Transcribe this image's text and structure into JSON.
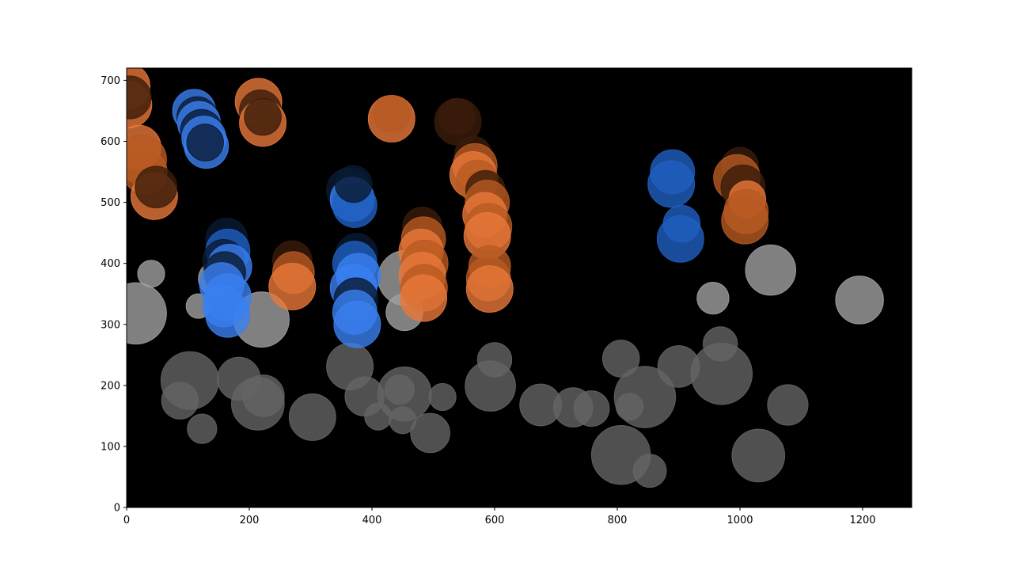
{
  "chart_data": {
    "type": "scatter",
    "title": "",
    "xlabel": "",
    "ylabel": "",
    "xlim": [
      0,
      1280
    ],
    "ylim": [
      0,
      720
    ],
    "x_ticks": [
      0,
      200,
      400,
      600,
      800,
      1000,
      1200
    ],
    "y_ticks": [
      0,
      100,
      200,
      300,
      400,
      500,
      600,
      700
    ],
    "grid": false,
    "background": "#000000",
    "colors": {
      "gray_light": "#a0a0a0",
      "gray_dark": "#646464",
      "blue_light": "#3a80f0",
      "blue_mid": "#1f5fc0",
      "blue_dark": "#0a1a33",
      "orange_light": "#e8783a",
      "orange_mid": "#b85a22",
      "orange_dark": "#3a1c0a"
    },
    "series": [
      {
        "color_key": "gray",
        "points": [
          {
            "x": 15,
            "y": 318,
            "r": 50,
            "c": "gray_light"
          },
          {
            "x": 40,
            "y": 383,
            "r": 22,
            "c": "gray_light"
          },
          {
            "x": 117,
            "y": 330,
            "r": 20,
            "c": "gray_light"
          },
          {
            "x": 145,
            "y": 375,
            "r": 28,
            "c": "gray_light"
          },
          {
            "x": 220,
            "y": 308,
            "r": 45,
            "c": "gray_light"
          },
          {
            "x": 103,
            "y": 208,
            "r": 47,
            "c": "gray_dark"
          },
          {
            "x": 87,
            "y": 175,
            "r": 30,
            "c": "gray_dark"
          },
          {
            "x": 123,
            "y": 129,
            "r": 24,
            "c": "gray_dark"
          },
          {
            "x": 183,
            "y": 211,
            "r": 35,
            "c": "gray_dark"
          },
          {
            "x": 214,
            "y": 170,
            "r": 43,
            "c": "gray_dark"
          },
          {
            "x": 223,
            "y": 183,
            "r": 34,
            "c": "gray_dark"
          },
          {
            "x": 303,
            "y": 148,
            "r": 38,
            "c": "gray_dark"
          },
          {
            "x": 364,
            "y": 231,
            "r": 38,
            "c": "gray_dark"
          },
          {
            "x": 388,
            "y": 182,
            "r": 32,
            "c": "gray_dark"
          },
          {
            "x": 410,
            "y": 149,
            "r": 22,
            "c": "gray_dark"
          },
          {
            "x": 453,
            "y": 186,
            "r": 44,
            "c": "gray_dark"
          },
          {
            "x": 445,
            "y": 193,
            "r": 24,
            "c": "gray_dark"
          },
          {
            "x": 450,
            "y": 143,
            "r": 22,
            "c": "gray_dark"
          },
          {
            "x": 453,
            "y": 320,
            "r": 30,
            "c": "gray_light"
          },
          {
            "x": 455,
            "y": 376,
            "r": 45,
            "c": "gray_light"
          },
          {
            "x": 495,
            "y": 122,
            "r": 32,
            "c": "gray_dark"
          },
          {
            "x": 515,
            "y": 181,
            "r": 22,
            "c": "gray_dark"
          },
          {
            "x": 593,
            "y": 199,
            "r": 41,
            "c": "gray_dark"
          },
          {
            "x": 600,
            "y": 242,
            "r": 28,
            "c": "gray_dark"
          },
          {
            "x": 675,
            "y": 168,
            "r": 34,
            "c": "gray_dark"
          },
          {
            "x": 728,
            "y": 164,
            "r": 32,
            "c": "gray_dark"
          },
          {
            "x": 758,
            "y": 162,
            "r": 29,
            "c": "gray_dark"
          },
          {
            "x": 806,
            "y": 244,
            "r": 30,
            "c": "gray_dark"
          },
          {
            "x": 806,
            "y": 86,
            "r": 48,
            "c": "gray_dark"
          },
          {
            "x": 820,
            "y": 165,
            "r": 22,
            "c": "gray_dark"
          },
          {
            "x": 845,
            "y": 181,
            "r": 50,
            "c": "gray_dark"
          },
          {
            "x": 853,
            "y": 60,
            "r": 27,
            "c": "gray_dark"
          },
          {
            "x": 900,
            "y": 231,
            "r": 34,
            "c": "gray_dark"
          },
          {
            "x": 956,
            "y": 343,
            "r": 26,
            "c": "gray_light"
          },
          {
            "x": 968,
            "y": 268,
            "r": 28,
            "c": "gray_dark"
          },
          {
            "x": 970,
            "y": 219,
            "r": 50,
            "c": "gray_dark"
          },
          {
            "x": 1030,
            "y": 85,
            "r": 43,
            "c": "gray_dark"
          },
          {
            "x": 1050,
            "y": 389,
            "r": 41,
            "c": "gray_light"
          },
          {
            "x": 1078,
            "y": 168,
            "r": 33,
            "c": "gray_dark"
          },
          {
            "x": 1195,
            "y": 340,
            "r": 39,
            "c": "gray_light"
          }
        ]
      },
      {
        "color_key": "blue",
        "points": [
          {
            "x": 110,
            "y": 650,
            "r": 35,
            "c": "blue_light"
          },
          {
            "x": 115,
            "y": 640,
            "r": 33,
            "c": "blue_dark"
          },
          {
            "x": 118,
            "y": 630,
            "r": 35,
            "c": "blue_light"
          },
          {
            "x": 122,
            "y": 618,
            "r": 34,
            "c": "blue_dark"
          },
          {
            "x": 126,
            "y": 605,
            "r": 36,
            "c": "blue_light"
          },
          {
            "x": 130,
            "y": 592,
            "r": 36,
            "c": "blue_light"
          },
          {
            "x": 128,
            "y": 598,
            "r": 30,
            "c": "blue_dark"
          },
          {
            "x": 163,
            "y": 440,
            "r": 34,
            "c": "blue_dark"
          },
          {
            "x": 165,
            "y": 420,
            "r": 36,
            "c": "blue_mid"
          },
          {
            "x": 158,
            "y": 405,
            "r": 34,
            "c": "blue_dark"
          },
          {
            "x": 168,
            "y": 395,
            "r": 36,
            "c": "blue_light"
          },
          {
            "x": 160,
            "y": 385,
            "r": 34,
            "c": "blue_dark"
          },
          {
            "x": 155,
            "y": 365,
            "r": 36,
            "c": "blue_light"
          },
          {
            "x": 165,
            "y": 345,
            "r": 38,
            "c": "blue_light"
          },
          {
            "x": 158,
            "y": 330,
            "r": 34,
            "c": "blue_light"
          },
          {
            "x": 165,
            "y": 315,
            "r": 36,
            "c": "blue_light"
          },
          {
            "x": 362,
            "y": 520,
            "r": 36,
            "c": "blue_dark"
          },
          {
            "x": 368,
            "y": 505,
            "r": 36,
            "c": "blue_light"
          },
          {
            "x": 372,
            "y": 495,
            "r": 36,
            "c": "blue_mid"
          },
          {
            "x": 370,
            "y": 530,
            "r": 30,
            "c": "blue_dark"
          },
          {
            "x": 375,
            "y": 415,
            "r": 34,
            "c": "blue_dark"
          },
          {
            "x": 372,
            "y": 400,
            "r": 36,
            "c": "blue_mid"
          },
          {
            "x": 378,
            "y": 380,
            "r": 36,
            "c": "blue_light"
          },
          {
            "x": 370,
            "y": 360,
            "r": 38,
            "c": "blue_light"
          },
          {
            "x": 374,
            "y": 340,
            "r": 36,
            "c": "blue_dark"
          },
          {
            "x": 372,
            "y": 320,
            "r": 36,
            "c": "blue_light"
          },
          {
            "x": 376,
            "y": 300,
            "r": 38,
            "c": "blue_light"
          },
          {
            "x": 890,
            "y": 550,
            "r": 36,
            "c": "blue_mid"
          },
          {
            "x": 888,
            "y": 530,
            "r": 38,
            "c": "blue_mid"
          },
          {
            "x": 905,
            "y": 465,
            "r": 30,
            "c": "blue_mid"
          },
          {
            "x": 903,
            "y": 440,
            "r": 38,
            "c": "blue_mid"
          }
        ]
      },
      {
        "color_key": "orange",
        "points": [
          {
            "x": 0,
            "y": 690,
            "r": 38,
            "c": "orange_light"
          },
          {
            "x": 3,
            "y": 660,
            "r": 38,
            "c": "orange_light"
          },
          {
            "x": 5,
            "y": 672,
            "r": 35,
            "c": "orange_dark"
          },
          {
            "x": 20,
            "y": 590,
            "r": 36,
            "c": "orange_light"
          },
          {
            "x": 25,
            "y": 570,
            "r": 40,
            "c": "orange_mid"
          },
          {
            "x": 30,
            "y": 550,
            "r": 36,
            "c": "orange_mid"
          },
          {
            "x": 45,
            "y": 510,
            "r": 38,
            "c": "orange_light"
          },
          {
            "x": 48,
            "y": 525,
            "r": 34,
            "c": "orange_dark"
          },
          {
            "x": 215,
            "y": 665,
            "r": 38,
            "c": "orange_light"
          },
          {
            "x": 218,
            "y": 650,
            "r": 34,
            "c": "orange_dark"
          },
          {
            "x": 222,
            "y": 630,
            "r": 38,
            "c": "orange_light"
          },
          {
            "x": 222,
            "y": 640,
            "r": 30,
            "c": "orange_dark"
          },
          {
            "x": 270,
            "y": 405,
            "r": 32,
            "c": "orange_dark"
          },
          {
            "x": 272,
            "y": 385,
            "r": 34,
            "c": "orange_mid"
          },
          {
            "x": 270,
            "y": 362,
            "r": 38,
            "c": "orange_light"
          },
          {
            "x": 432,
            "y": 637,
            "r": 38,
            "c": "orange_light"
          },
          {
            "x": 432,
            "y": 645,
            "r": 30,
            "c": "orange_mid"
          },
          {
            "x": 482,
            "y": 460,
            "r": 32,
            "c": "orange_dark"
          },
          {
            "x": 484,
            "y": 440,
            "r": 36,
            "c": "orange_mid"
          },
          {
            "x": 480,
            "y": 420,
            "r": 36,
            "c": "orange_light"
          },
          {
            "x": 486,
            "y": 400,
            "r": 38,
            "c": "orange_mid"
          },
          {
            "x": 482,
            "y": 380,
            "r": 38,
            "c": "orange_light"
          },
          {
            "x": 485,
            "y": 360,
            "r": 38,
            "c": "orange_mid"
          },
          {
            "x": 484,
            "y": 343,
            "r": 38,
            "c": "orange_light"
          },
          {
            "x": 540,
            "y": 632,
            "r": 38,
            "c": "orange_dark"
          },
          {
            "x": 538,
            "y": 640,
            "r": 30,
            "c": "orange_dark"
          },
          {
            "x": 565,
            "y": 578,
            "r": 30,
            "c": "orange_dark"
          },
          {
            "x": 568,
            "y": 560,
            "r": 36,
            "c": "orange_mid"
          },
          {
            "x": 565,
            "y": 545,
            "r": 38,
            "c": "orange_light"
          },
          {
            "x": 572,
            "y": 535,
            "r": 34,
            "c": "orange_mid"
          },
          {
            "x": 585,
            "y": 520,
            "r": 32,
            "c": "orange_dark"
          },
          {
            "x": 588,
            "y": 500,
            "r": 36,
            "c": "orange_mid"
          },
          {
            "x": 584,
            "y": 480,
            "r": 36,
            "c": "orange_light"
          },
          {
            "x": 590,
            "y": 460,
            "r": 38,
            "c": "orange_mid"
          },
          {
            "x": 588,
            "y": 445,
            "r": 38,
            "c": "orange_light"
          },
          {
            "x": 592,
            "y": 395,
            "r": 34,
            "c": "orange_mid"
          },
          {
            "x": 590,
            "y": 375,
            "r": 36,
            "c": "orange_mid"
          },
          {
            "x": 592,
            "y": 358,
            "r": 38,
            "c": "orange_light"
          },
          {
            "x": 1000,
            "y": 560,
            "r": 30,
            "c": "orange_dark"
          },
          {
            "x": 995,
            "y": 540,
            "r": 38,
            "c": "orange_mid"
          },
          {
            "x": 1005,
            "y": 525,
            "r": 36,
            "c": "orange_dark"
          },
          {
            "x": 1012,
            "y": 505,
            "r": 30,
            "c": "orange_light"
          },
          {
            "x": 1010,
            "y": 485,
            "r": 36,
            "c": "orange_mid"
          },
          {
            "x": 1008,
            "y": 470,
            "r": 38,
            "c": "orange_mid"
          }
        ]
      }
    ]
  }
}
